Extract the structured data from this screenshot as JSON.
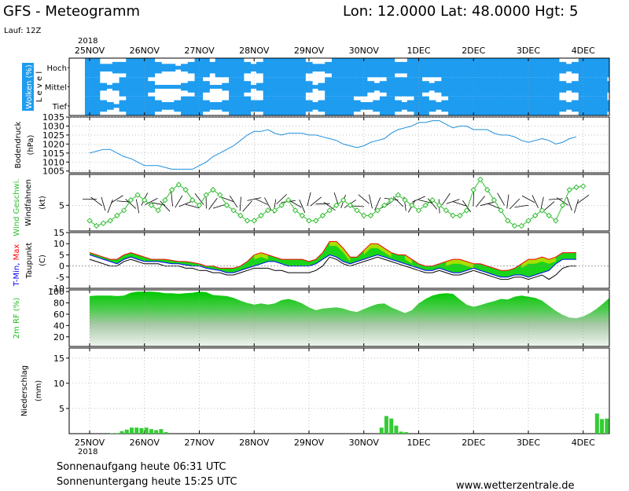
{
  "header": {
    "title": "GFS - Meteogramm",
    "location": "Lon: 12.0000  Lat: 48.0000  Hgt: 5",
    "run": "Lauf: 12Z",
    "year": "2018"
  },
  "footer": {
    "sunrise": "Sonnenaufgang heute 06:31 UTC",
    "sunset": "Sonnenuntergang heute 15:25 UTC",
    "website": "www.wetterzentrale.de"
  },
  "chart_data": {
    "type": "meteogram",
    "x": {
      "label_year": "2018",
      "dates": [
        "25NOV",
        "26NOV",
        "27NOV",
        "28NOV",
        "29NOV",
        "30NOV",
        "1DEC",
        "2DEC",
        "3DEC",
        "4DEC"
      ],
      "start_hour": 0,
      "step_hours": 3
    },
    "colors": {
      "cloud": "#1e9cf0",
      "pressure": "#1e8fdc",
      "wind": "#2fbd2f",
      "tmin": "#0000ff",
      "tmax": "#ff0000",
      "dew": "#000000",
      "fill_green": "#00d000",
      "fill_lime": "#a8e000",
      "fill_cyan": "#00b8d8",
      "humidity": "#20c020",
      "precip": "#33cc33"
    },
    "panels": [
      {
        "id": "clouds",
        "ylabel_left": "Wolken (%)",
        "ylabel_right": "Level",
        "levels": [
          "Hoch",
          "Mittel",
          "Tief"
        ],
        "hoch": [
          100,
          100,
          40,
          40,
          60,
          60,
          100,
          100,
          100,
          100,
          60,
          40,
          40,
          20,
          40,
          60,
          100,
          100,
          60,
          100,
          100,
          100,
          100,
          60,
          40,
          60,
          100,
          100,
          100,
          100,
          100,
          100,
          60,
          40,
          40,
          60,
          100,
          100,
          100,
          100,
          100,
          100,
          100,
          100,
          100,
          60,
          60,
          100,
          100,
          100,
          100,
          100,
          100,
          100,
          100,
          100,
          100,
          100,
          100,
          100,
          100,
          100,
          100,
          100,
          100,
          100,
          100,
          100,
          100,
          60,
          40,
          60,
          100,
          100,
          100,
          100,
          100,
          100,
          40,
          40,
          60,
          100,
          100
        ],
        "mittel": [
          100,
          100,
          40,
          20,
          40,
          100,
          100,
          100,
          100,
          60,
          20,
          20,
          20,
          20,
          40,
          60,
          100,
          60,
          20,
          20,
          40,
          100,
          100,
          60,
          20,
          40,
          100,
          100,
          100,
          100,
          100,
          100,
          60,
          20,
          40,
          100,
          100,
          100,
          100,
          100,
          100,
          60,
          40,
          60,
          100,
          100,
          100,
          100,
          100,
          60,
          40,
          60,
          100,
          100,
          100,
          100,
          100,
          100,
          100,
          100,
          100,
          100,
          100,
          100,
          100,
          100,
          100,
          100,
          100,
          60,
          40,
          60,
          100,
          100,
          100,
          100,
          60,
          40,
          40,
          60,
          100,
          100,
          100
        ],
        "tief": [
          100,
          100,
          60,
          40,
          20,
          60,
          100,
          100,
          100,
          100,
          60,
          40,
          40,
          60,
          100,
          100,
          100,
          60,
          40,
          40,
          60,
          100,
          100,
          100,
          60,
          60,
          100,
          100,
          100,
          100,
          100,
          100,
          60,
          40,
          60,
          100,
          100,
          100,
          100,
          60,
          40,
          40,
          60,
          100,
          100,
          60,
          40,
          60,
          100,
          100,
          60,
          40,
          60,
          100,
          100,
          100,
          100,
          100,
          100,
          100,
          100,
          100,
          100,
          100,
          100,
          100,
          100,
          100,
          100,
          60,
          40,
          60,
          100,
          100,
          100,
          100,
          60,
          40,
          40,
          60,
          100,
          100,
          100
        ]
      },
      {
        "id": "pressure",
        "ylabel": [
          "Bodendruck",
          "(hPa)"
        ],
        "ylim": [
          1004,
          1035
        ],
        "yticks": [
          1005,
          1010,
          1015,
          1020,
          1025,
          1030,
          1035
        ],
        "values": [
          1015,
          1016,
          1017,
          1017,
          1015,
          1013,
          1012,
          1010,
          1008,
          1008,
          1008,
          1007,
          1006,
          1006,
          1006,
          1006,
          1008,
          1010,
          1013,
          1015,
          1017,
          1019,
          1022,
          1025,
          1027,
          1027,
          1028,
          1026,
          1025,
          1026,
          1026,
          1026,
          1025,
          1025,
          1024,
          1023,
          1022,
          1020,
          1019,
          1018,
          1019,
          1021,
          1022,
          1023,
          1026,
          1028,
          1029,
          1030,
          1032,
          1032,
          1033,
          1033,
          1031,
          1029,
          1030,
          1030,
          1028,
          1028,
          1028,
          1026,
          1025,
          1025,
          1024,
          1022,
          1021,
          1022,
          1023,
          1022,
          1020,
          1021,
          1023,
          1024
        ]
      },
      {
        "id": "wind",
        "ylabel_left": "Wind Geschwi.",
        "ylabel_right": "Windfahnen",
        "ylabel_unit": "(kt)",
        "ylim": [
          0,
          11
        ],
        "yticks": [
          5
        ],
        "values": [
          2,
          1,
          1.5,
          2,
          3,
          4,
          6,
          7,
          6,
          5,
          4,
          6,
          8,
          9,
          8,
          6,
          5,
          7,
          8,
          7,
          5,
          4,
          3,
          2,
          2,
          3,
          4,
          4,
          5,
          6,
          4,
          3,
          2,
          2,
          3,
          4,
          5,
          6,
          5,
          4,
          3,
          3,
          4,
          5,
          6,
          7,
          6,
          5,
          4,
          5,
          6,
          5,
          4,
          3,
          3,
          4,
          8,
          10,
          8,
          6,
          4,
          2,
          1,
          1,
          2,
          3,
          4,
          3,
          2,
          5,
          8,
          8.5,
          8.7
        ]
      },
      {
        "id": "temperature",
        "ylabel_segments": [
          {
            "text": "T-Min, ",
            "color": "#0000ff"
          },
          {
            "text": "Max",
            "color": "#ff0000"
          }
        ],
        "ylabel_lines": [
          "Taupunkt",
          "(C)"
        ],
        "ylim": [
          -10,
          15
        ],
        "yticks": [
          -10,
          -5,
          0,
          5,
          10,
          15
        ],
        "tmin": [
          5,
          4,
          3,
          2,
          1,
          3,
          4,
          3,
          2,
          2,
          2,
          1.5,
          1,
          1,
          0.5,
          0,
          0,
          -1,
          -1.5,
          -2,
          -3,
          -3,
          -2,
          -1,
          0,
          1,
          2,
          2,
          1,
          0,
          0,
          0,
          0,
          1,
          3,
          5,
          4,
          2,
          1,
          2,
          3,
          4,
          5,
          4,
          3,
          2,
          1,
          0,
          -1,
          -2,
          -2,
          -1,
          -2,
          -3,
          -3,
          -2,
          -1,
          -2,
          -3,
          -4,
          -5,
          -5,
          -4,
          -4,
          -5,
          -4,
          -3,
          -2,
          1,
          3,
          3,
          3
        ],
        "tmax": [
          6,
          5,
          4,
          3,
          3,
          5,
          6,
          5,
          4,
          3,
          3,
          3,
          2.5,
          2,
          2,
          1.5,
          1,
          0,
          0,
          -1,
          -1,
          -1,
          0,
          2,
          5,
          6,
          5,
          4,
          3,
          3,
          3,
          3,
          2,
          3,
          6,
          11,
          11,
          8,
          4,
          4,
          7,
          10,
          10,
          8,
          6,
          5,
          5,
          3,
          1,
          0,
          0,
          1,
          2,
          3,
          3,
          2,
          1,
          1,
          0,
          -1,
          -2,
          -2,
          -1,
          1,
          3,
          3,
          4,
          3,
          4,
          6,
          6,
          6
        ],
        "dew": [
          3,
          2,
          1,
          0,
          0,
          2,
          3,
          2,
          1,
          1,
          1,
          0,
          0,
          0,
          -1,
          -1,
          -2,
          -2,
          -3,
          -3,
          -4,
          -4,
          -3,
          -2,
          -1,
          -1,
          -1,
          -2,
          -2,
          -3,
          -3,
          -3,
          -3,
          -2,
          0,
          4,
          3,
          1,
          0,
          1,
          2,
          3,
          4,
          3,
          2,
          1,
          0,
          -1,
          -2,
          -3,
          -3,
          -2,
          -3,
          -4,
          -4,
          -3,
          -2,
          -3,
          -4,
          -5,
          -6,
          -6,
          -5,
          -5,
          -6,
          -5,
          -4,
          -6,
          -4,
          -1,
          0,
          0
        ]
      },
      {
        "id": "humidity",
        "ylabel": [
          "2m RF (%)"
        ],
        "ylim": [
          3,
          103
        ],
        "yticks": [
          20,
          40,
          60,
          80,
          100
        ],
        "values": [
          92,
          93,
          93,
          93,
          92,
          93,
          98,
          100,
          100,
          100,
          99,
          97,
          97,
          96,
          97,
          98,
          100,
          99,
          94,
          93,
          92,
          89,
          84,
          80,
          77,
          79,
          77,
          79,
          85,
          87,
          84,
          79,
          72,
          67,
          70,
          71,
          72,
          70,
          66,
          64,
          69,
          74,
          78,
          79,
          72,
          67,
          62,
          67,
          79,
          87,
          93,
          96,
          97,
          96,
          86,
          77,
          73,
          76,
          80,
          83,
          87,
          86,
          91,
          93,
          91,
          89,
          84,
          75,
          66,
          59,
          54,
          53,
          56,
          62,
          70,
          80,
          89,
          95,
          96,
          96,
          96
        ],
        "band_fill": "#00cc00"
      },
      {
        "id": "precipitation",
        "ylabel": [
          "Niederschlag",
          "(mm)"
        ],
        "ylim": [
          0,
          17
        ],
        "yticks": [
          5,
          10,
          15
        ],
        "values": [
          0,
          0,
          0,
          0,
          0,
          0,
          0,
          0,
          0,
          0.1,
          0.1,
          0.5,
          0.8,
          1.2,
          1.2,
          1.1,
          1.2,
          0.9,
          0.7,
          0.9,
          0.3,
          0,
          0,
          0,
          0,
          0,
          0,
          0,
          0,
          0,
          0,
          0,
          0,
          0,
          0,
          0,
          0,
          0,
          0,
          0,
          0,
          0,
          0,
          0,
          0,
          0,
          0,
          0,
          0,
          0,
          0,
          0,
          0,
          0,
          0,
          0,
          0,
          0,
          0,
          0,
          0,
          0,
          0,
          0,
          1.2,
          3.5,
          3,
          1.6,
          0.4,
          0.3,
          0,
          0,
          0,
          0,
          0,
          0,
          0,
          0,
          0,
          0,
          0,
          0,
          0,
          0,
          0,
          0,
          0,
          0,
          0,
          0,
          0,
          0,
          0,
          0,
          0,
          0,
          0,
          0,
          0,
          0,
          0,
          0,
          0,
          0,
          0,
          0,
          0,
          0,
          4,
          2.9,
          3,
          0.3,
          2.8
        ]
      }
    ]
  }
}
